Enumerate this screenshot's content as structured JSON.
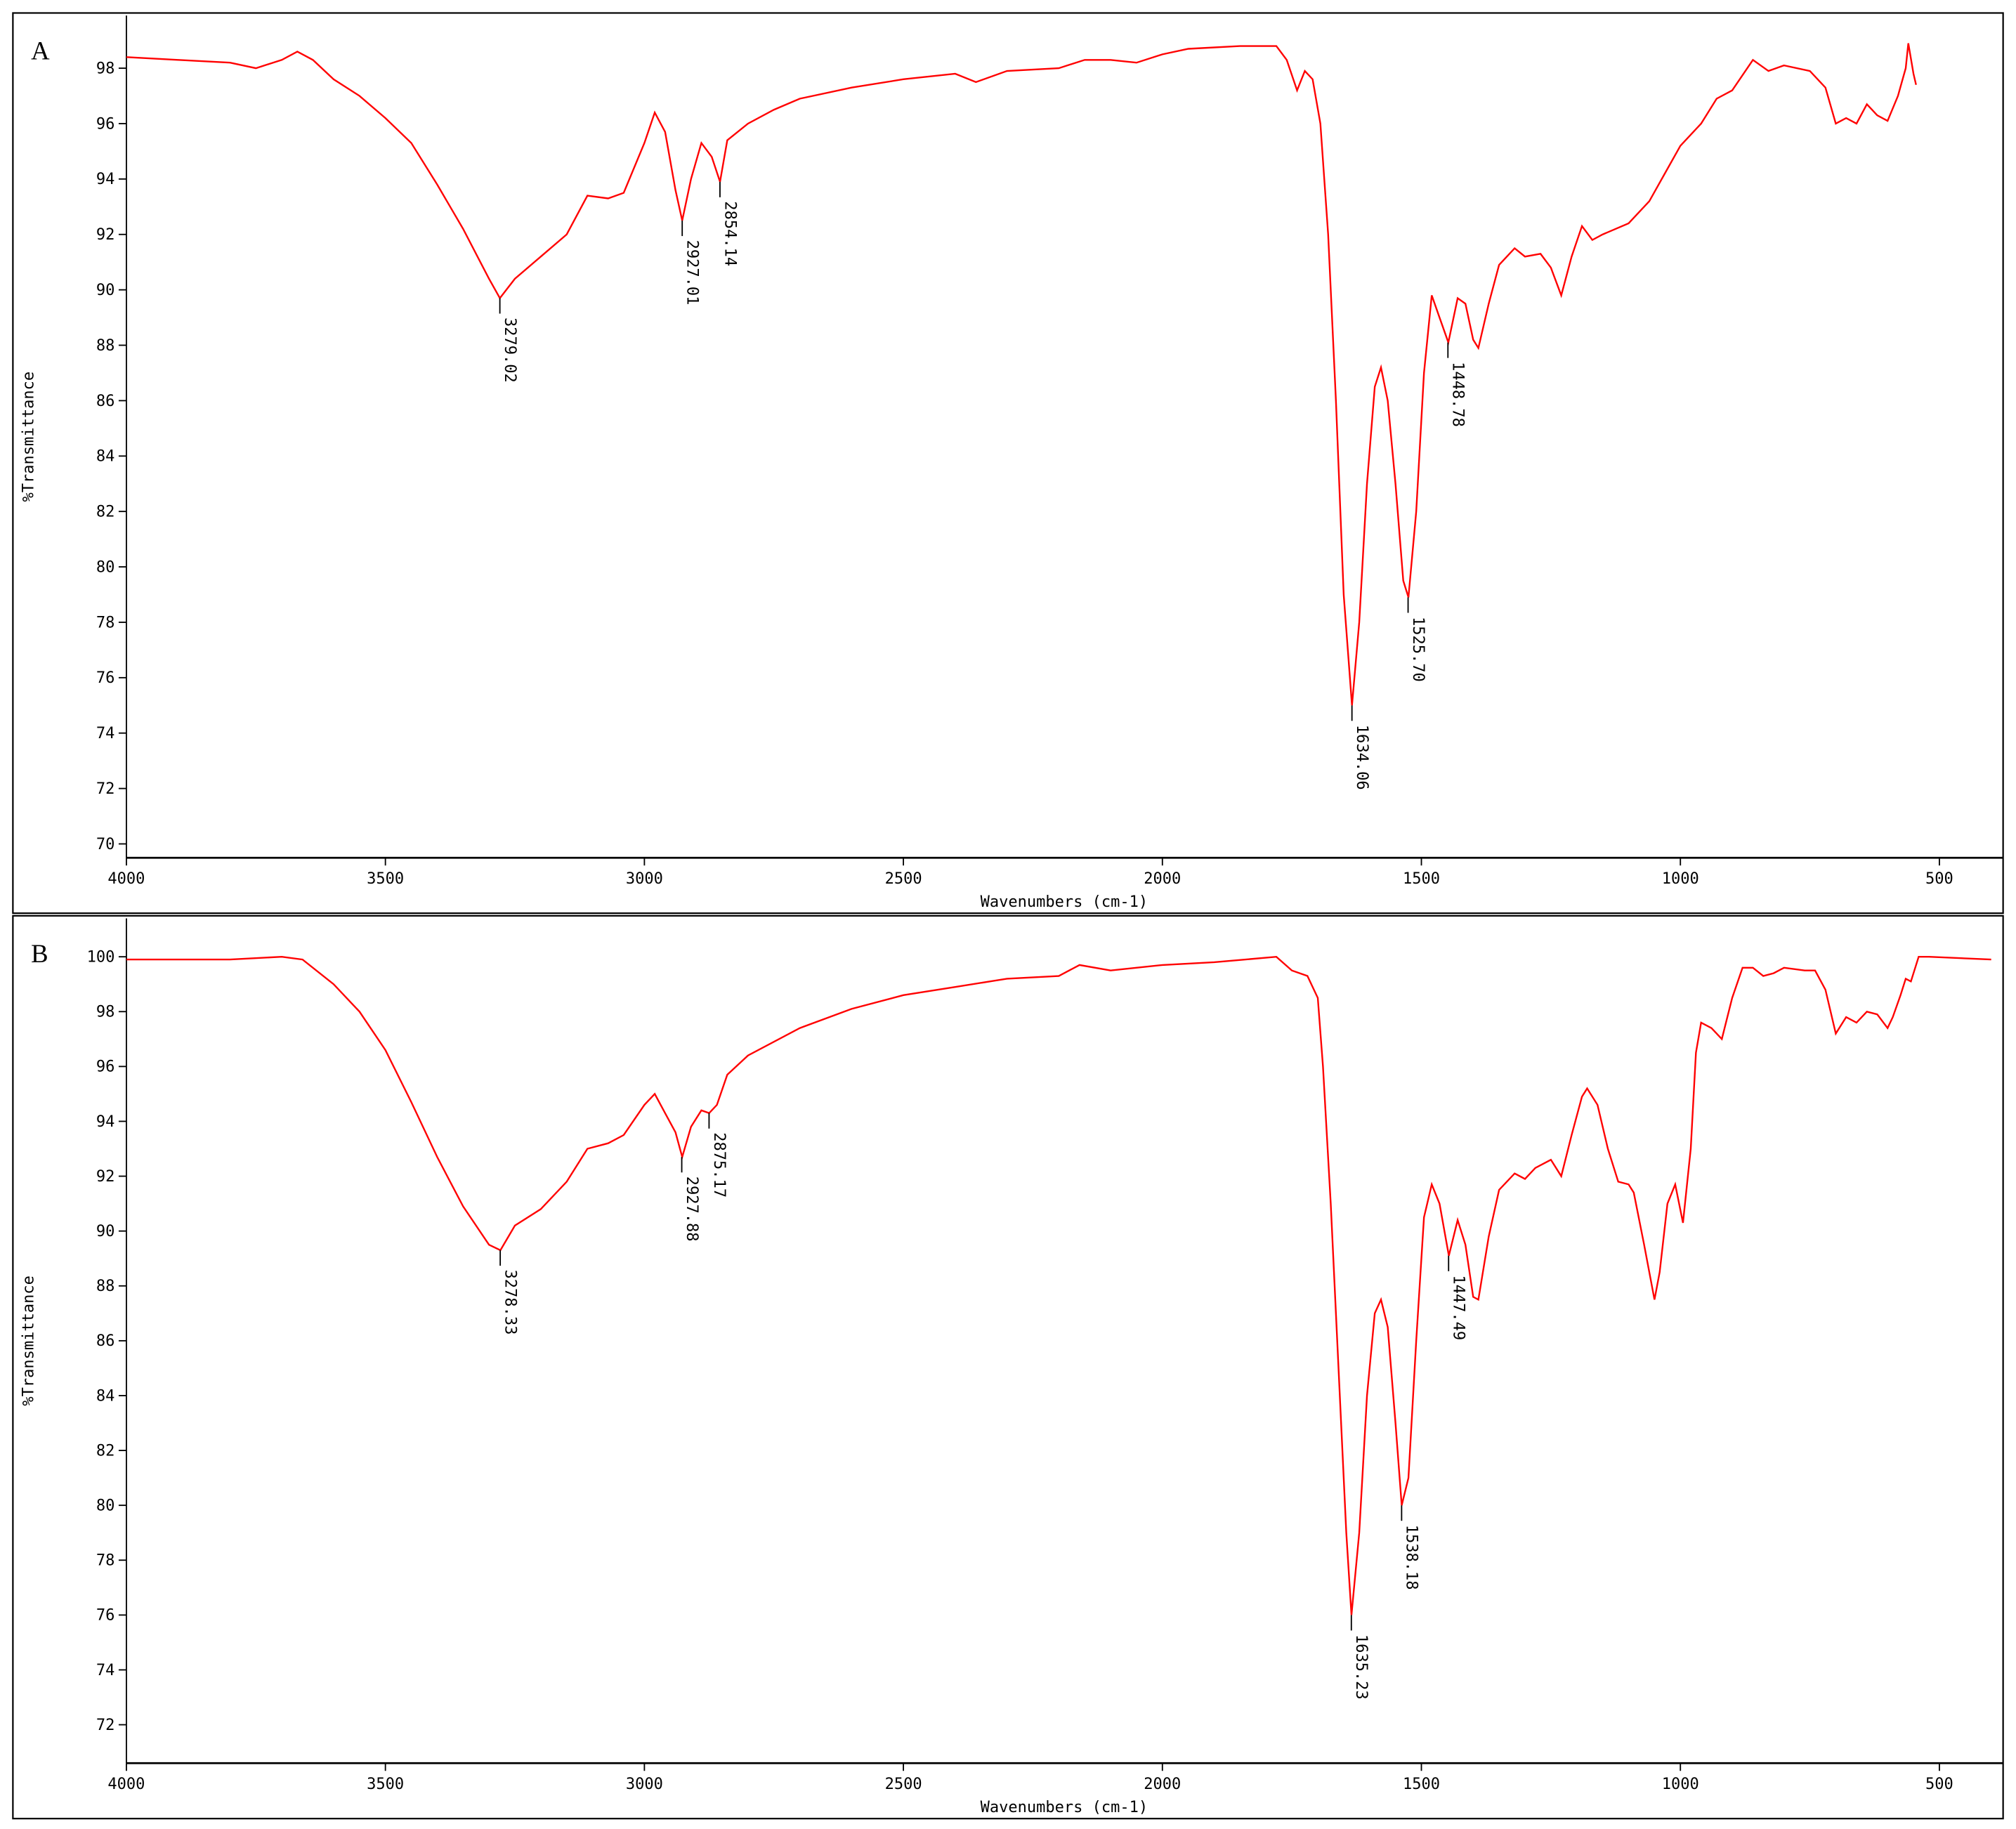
{
  "chart_data": [
    {
      "type": "line",
      "title": "A",
      "x_label": "Wavenumbers (cm-1)",
      "y_label": "%Transmittance",
      "color": "#ff0000",
      "xlim": [
        4000,
        377
      ],
      "ylim": [
        69.5,
        99.9
      ],
      "xticks": [
        4000,
        3500,
        3000,
        2500,
        2000,
        1500,
        1000,
        500
      ],
      "yticks": [
        70,
        72,
        74,
        76,
        78,
        80,
        82,
        84,
        86,
        88,
        90,
        92,
        94,
        96,
        98
      ],
      "x": [
        4000,
        3900,
        3800,
        3750,
        3700,
        3670,
        3640,
        3600,
        3550,
        3500,
        3450,
        3400,
        3350,
        3300,
        3279,
        3250,
        3200,
        3150,
        3110,
        3070,
        3040,
        3000,
        2980,
        2960,
        2940,
        2927,
        2910,
        2890,
        2870,
        2854,
        2840,
        2800,
        2750,
        2700,
        2600,
        2500,
        2400,
        2360,
        2300,
        2200,
        2150,
        2100,
        2050,
        2000,
        1950,
        1850,
        1780,
        1760,
        1740,
        1725,
        1710,
        1695,
        1680,
        1665,
        1650,
        1634,
        1620,
        1605,
        1590,
        1578,
        1565,
        1550,
        1535,
        1525,
        1510,
        1495,
        1480,
        1465,
        1448,
        1430,
        1415,
        1400,
        1390,
        1370,
        1350,
        1320,
        1300,
        1270,
        1250,
        1230,
        1210,
        1190,
        1170,
        1150,
        1100,
        1060,
        1030,
        1000,
        960,
        930,
        900,
        860,
        830,
        800,
        750,
        720,
        700,
        680,
        660,
        640,
        620,
        600,
        580,
        565,
        560,
        550,
        545
      ],
      "values": [
        98.4,
        98.3,
        98.2,
        98.0,
        98.3,
        98.6,
        98.3,
        97.6,
        97.0,
        96.2,
        95.3,
        93.8,
        92.2,
        90.4,
        89.7,
        90.4,
        91.2,
        92.0,
        93.4,
        93.3,
        93.5,
        95.3,
        96.4,
        95.7,
        93.6,
        92.5,
        94.0,
        95.3,
        94.8,
        93.9,
        95.4,
        96.0,
        96.5,
        96.9,
        97.3,
        97.6,
        97.8,
        97.5,
        97.9,
        98.0,
        98.3,
        98.3,
        98.2,
        98.5,
        98.7,
        98.8,
        98.8,
        98.3,
        97.2,
        97.9,
        97.6,
        96.0,
        92,
        86,
        79,
        75.0,
        78,
        83,
        86.5,
        87.2,
        86,
        83,
        79.5,
        78.9,
        82,
        87,
        89.8,
        89.0,
        88.1,
        89.7,
        89.5,
        88.2,
        87.9,
        89.5,
        90.9,
        91.5,
        91.2,
        91.3,
        90.8,
        89.8,
        91.2,
        92.3,
        91.8,
        92.0,
        92.4,
        93.2,
        94.2,
        95.2,
        96.0,
        96.9,
        97.2,
        98.3,
        97.9,
        98.1,
        97.9,
        97.3,
        96.0,
        96.2,
        96.0,
        96.7,
        96.3,
        96.1,
        97.0,
        98.0,
        98.9,
        97.8,
        97.4
      ],
      "annotations": [
        {
          "label": "3279.02",
          "x": 3279.02,
          "y": 89.7
        },
        {
          "label": "2927.01",
          "x": 2927.01,
          "y": 92.5
        },
        {
          "label": "2854.14",
          "x": 2854.14,
          "y": 93.9
        },
        {
          "label": "1634.06",
          "x": 1634.06,
          "y": 75.0
        },
        {
          "label": "1525.70",
          "x": 1525.7,
          "y": 78.9
        },
        {
          "label": "1448.78",
          "x": 1448.78,
          "y": 88.1
        }
      ]
    },
    {
      "type": "line",
      "title": "B",
      "x_label": "Wavenumbers (cm-1)",
      "y_label": "%Transmittance",
      "color": "#ff0000",
      "xlim": [
        4000,
        377
      ],
      "ylim": [
        70.6,
        101.4
      ],
      "xticks": [
        4000,
        3500,
        3000,
        2500,
        2000,
        1500,
        1000,
        500
      ],
      "yticks": [
        72,
        74,
        76,
        78,
        80,
        82,
        84,
        86,
        88,
        90,
        92,
        94,
        96,
        98,
        100
      ],
      "x": [
        4000,
        3800,
        3700,
        3660,
        3600,
        3550,
        3500,
        3450,
        3400,
        3350,
        3300,
        3278,
        3250,
        3200,
        3150,
        3110,
        3070,
        3040,
        3000,
        2980,
        2960,
        2940,
        2927,
        2910,
        2890,
        2875,
        2860,
        2840,
        2800,
        2700,
        2600,
        2500,
        2400,
        2300,
        2200,
        2160,
        2100,
        2000,
        1900,
        1780,
        1750,
        1720,
        1700,
        1690,
        1675,
        1660,
        1645,
        1635,
        1620,
        1605,
        1590,
        1578,
        1565,
        1550,
        1538,
        1525,
        1510,
        1495,
        1480,
        1465,
        1447,
        1430,
        1415,
        1400,
        1390,
        1370,
        1350,
        1320,
        1300,
        1280,
        1250,
        1230,
        1210,
        1190,
        1180,
        1160,
        1140,
        1120,
        1100,
        1090,
        1070,
        1050,
        1040,
        1025,
        1010,
        995,
        980,
        970,
        960,
        940,
        920,
        900,
        880,
        860,
        840,
        820,
        800,
        760,
        740,
        720,
        700,
        680,
        660,
        640,
        620,
        600,
        590,
        575,
        565,
        555,
        540,
        520,
        400
      ],
      "values": [
        99.9,
        99.9,
        100.0,
        99.9,
        99.0,
        98.0,
        96.6,
        94.7,
        92.7,
        90.9,
        89.5,
        89.3,
        90.2,
        90.8,
        91.8,
        93.0,
        93.2,
        93.5,
        94.6,
        95.0,
        94.3,
        93.6,
        92.7,
        93.8,
        94.4,
        94.3,
        94.6,
        95.7,
        96.4,
        97.4,
        98.1,
        98.6,
        98.9,
        99.2,
        99.3,
        99.7,
        99.5,
        99.7,
        99.8,
        100.0,
        99.5,
        99.3,
        98.5,
        96,
        91,
        85,
        79,
        76.0,
        79,
        84,
        87,
        87.5,
        86.5,
        83,
        80.0,
        81,
        86,
        90.5,
        91.7,
        91.0,
        89.1,
        90.4,
        89.5,
        87.6,
        87.5,
        89.8,
        91.5,
        92.1,
        91.9,
        92.3,
        92.6,
        92.0,
        93.5,
        94.9,
        95.2,
        94.6,
        93.0,
        91.8,
        91.7,
        91.4,
        89.5,
        87.5,
        88.5,
        91.0,
        91.7,
        90.3,
        93,
        96.5,
        97.6,
        97.4,
        97.0,
        98.5,
        99.6,
        99.6,
        99.3,
        99.4,
        99.6,
        99.5,
        99.5,
        98.8,
        97.2,
        97.8,
        97.6,
        98.0,
        97.9,
        97.4,
        97.8,
        98.6,
        99.2,
        99.1,
        100.0,
        100.0,
        99.9
      ],
      "annotations": [
        {
          "label": "3278.33",
          "x": 3278.33,
          "y": 89.3
        },
        {
          "label": "2927.88",
          "x": 2927.88,
          "y": 92.7
        },
        {
          "label": "2875.17",
          "x": 2875.17,
          "y": 94.3
        },
        {
          "label": "1635.23",
          "x": 1635.23,
          "y": 76.0
        },
        {
          "label": "1538.18",
          "x": 1538.18,
          "y": 80.0
        },
        {
          "label": "1447.49",
          "x": 1447.49,
          "y": 89.1
        }
      ]
    }
  ]
}
